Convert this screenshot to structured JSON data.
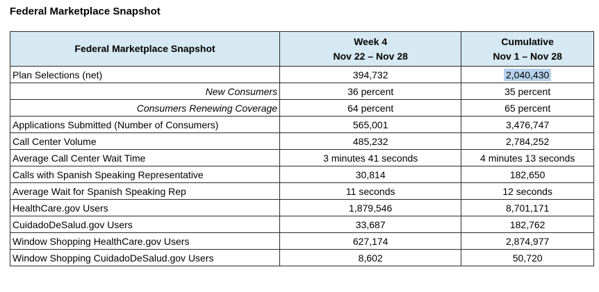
{
  "page_title": "Federal Marketplace Snapshot",
  "colors": {
    "header_bg": "#d6e8f1",
    "selection_highlight": "#b7d2ec",
    "border": "#2a2a2a"
  },
  "table": {
    "header": {
      "label_column": "Federal Marketplace Snapshot",
      "week_column": {
        "line1": "Week 4",
        "line2": "Nov 22 – Nov 28"
      },
      "cumulative_column": {
        "line1": "Cumulative",
        "line2": "Nov 1 – Nov 28"
      }
    },
    "rows": [
      {
        "label": "Plan Selections (net)",
        "week": "394,732",
        "cumulative": "2,040,430",
        "italic": false,
        "highlight_cumulative": true
      },
      {
        "label": "New Consumers",
        "week": "36 percent",
        "cumulative": "35 percent",
        "italic": true,
        "highlight_cumulative": false
      },
      {
        "label": "Consumers Renewing Coverage",
        "week": "64 percent",
        "cumulative": "65 percent",
        "italic": true,
        "highlight_cumulative": false
      },
      {
        "label": "Applications Submitted (Number of Consumers)",
        "week": "565,001",
        "cumulative": "3,476,747",
        "italic": false,
        "highlight_cumulative": false
      },
      {
        "label": "Call Center Volume",
        "week": "485,232",
        "cumulative": "2,784,252",
        "italic": false,
        "highlight_cumulative": false
      },
      {
        "label": "Average Call Center Wait Time",
        "week": "3 minutes 41 seconds",
        "cumulative": "4 minutes 13 seconds",
        "italic": false,
        "highlight_cumulative": false
      },
      {
        "label": "Calls with Spanish Speaking Representative",
        "week": "30,814",
        "cumulative": "182,650",
        "italic": false,
        "highlight_cumulative": false
      },
      {
        "label": "Average Wait for Spanish Speaking Rep",
        "week": "11 seconds",
        "cumulative": "12 seconds",
        "italic": false,
        "highlight_cumulative": false
      },
      {
        "label": "HealthCare.gov Users",
        "week": "1,879,546",
        "cumulative": "8,701,171",
        "italic": false,
        "highlight_cumulative": false
      },
      {
        "label": "CuidadoDeSalud.gov Users",
        "week": "33,687",
        "cumulative": "182,762",
        "italic": false,
        "highlight_cumulative": false
      },
      {
        "label": "Window Shopping HealthCare.gov Users",
        "week": "627,174",
        "cumulative": "2,874,977",
        "italic": false,
        "highlight_cumulative": false
      },
      {
        "label": "Window Shopping CuidadoDeSalud.gov Users",
        "week": "8,602",
        "cumulative": "50,720",
        "italic": false,
        "highlight_cumulative": false
      }
    ]
  }
}
